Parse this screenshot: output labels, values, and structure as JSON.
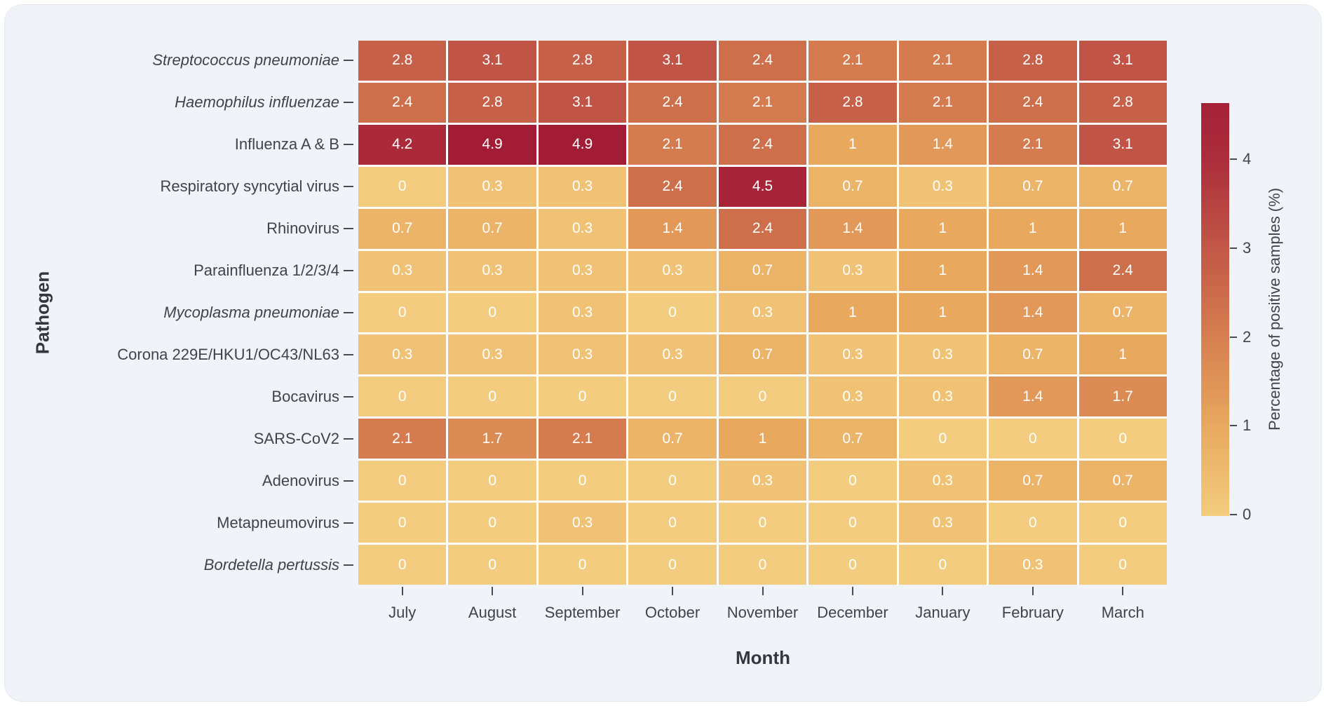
{
  "colors": {
    "page_background": "#FFFFFF",
    "card_background": "#F0F4F9",
    "grid_line": "#FFFFFF",
    "cell_text": "#FFFFFF",
    "axis_text": "#3E444B",
    "axis_title_text": "#33383D",
    "tick_mark": "#464C52"
  },
  "chart_data": {
    "type": "heatmap",
    "title": "",
    "xlabel": "Month",
    "ylabel": "Pathogen",
    "categories": [
      "July",
      "August",
      "September",
      "October",
      "November",
      "December",
      "January",
      "February",
      "March"
    ],
    "series": [
      {
        "name": "Streptococcus pneumoniae",
        "italic": true,
        "values": [
          2.8,
          3.1,
          2.8,
          3.1,
          2.4,
          2.1,
          2.1,
          2.8,
          3.1
        ]
      },
      {
        "name": "Haemophilus influenzae",
        "italic": true,
        "values": [
          2.4,
          2.8,
          3.1,
          2.4,
          2.1,
          2.8,
          2.1,
          2.4,
          2.8
        ]
      },
      {
        "name": "Influenza A & B",
        "italic": false,
        "values": [
          4.2,
          4.9,
          4.9,
          2.1,
          2.4,
          1,
          1.4,
          2.1,
          3.1
        ]
      },
      {
        "name": "Respiratory syncytial virus",
        "italic": false,
        "values": [
          0,
          0.3,
          0.3,
          2.4,
          4.5,
          0.7,
          0.3,
          0.7,
          0.7
        ]
      },
      {
        "name": "Rhinovirus",
        "italic": false,
        "values": [
          0.7,
          0.7,
          0.3,
          1.4,
          2.4,
          1.4,
          1,
          1,
          1
        ]
      },
      {
        "name": "Parainfluenza 1/2/3/4",
        "italic": false,
        "values": [
          0.3,
          0.3,
          0.3,
          0.3,
          0.7,
          0.3,
          1,
          1.4,
          2.4
        ]
      },
      {
        "name": "Mycoplasma pneumoniae",
        "italic": true,
        "values": [
          0,
          0,
          0.3,
          0,
          0.3,
          1,
          1,
          1.4,
          0.7
        ]
      },
      {
        "name": "Corona 229E/HKU1/OC43/NL63",
        "italic": false,
        "values": [
          0.3,
          0.3,
          0.3,
          0.3,
          0.7,
          0.3,
          0.3,
          0.7,
          1
        ]
      },
      {
        "name": "Bocavirus",
        "italic": false,
        "values": [
          0,
          0,
          0,
          0,
          0,
          0.3,
          0.3,
          1.4,
          1.7
        ]
      },
      {
        "name": "SARS-CoV2",
        "italic": false,
        "values": [
          2.1,
          1.7,
          2.1,
          0.7,
          1,
          0.7,
          0,
          0,
          0
        ]
      },
      {
        "name": "Adenovirus",
        "italic": false,
        "values": [
          0,
          0,
          0,
          0,
          0.3,
          0,
          0.3,
          0.7,
          0.7
        ]
      },
      {
        "name": "Metapneumovirus",
        "italic": false,
        "values": [
          0,
          0,
          0.3,
          0,
          0,
          0,
          0.3,
          0,
          0
        ]
      },
      {
        "name": "Bordetella pertussis",
        "italic": true,
        "values": [
          0,
          0,
          0,
          0,
          0,
          0,
          0,
          0.3,
          0
        ]
      }
    ],
    "colorbar": {
      "label": "Percentage of positive samples (%)",
      "ticks": [
        0,
        1,
        2,
        3,
        4
      ],
      "vmin": 0,
      "vmax": 4.9,
      "top_value": 4.65,
      "position": "right"
    },
    "colormap_stops": [
      {
        "v": 0,
        "c": "#F3CC80"
      },
      {
        "v": 1,
        "c": "#E8A95F"
      },
      {
        "v": 2,
        "c": "#D67F50"
      },
      {
        "v": 3,
        "c": "#C25847"
      },
      {
        "v": 4,
        "c": "#AC2E3C"
      },
      {
        "v": 4.9,
        "c": "#A21C35"
      }
    ],
    "grid": true,
    "legend_position": "none"
  }
}
